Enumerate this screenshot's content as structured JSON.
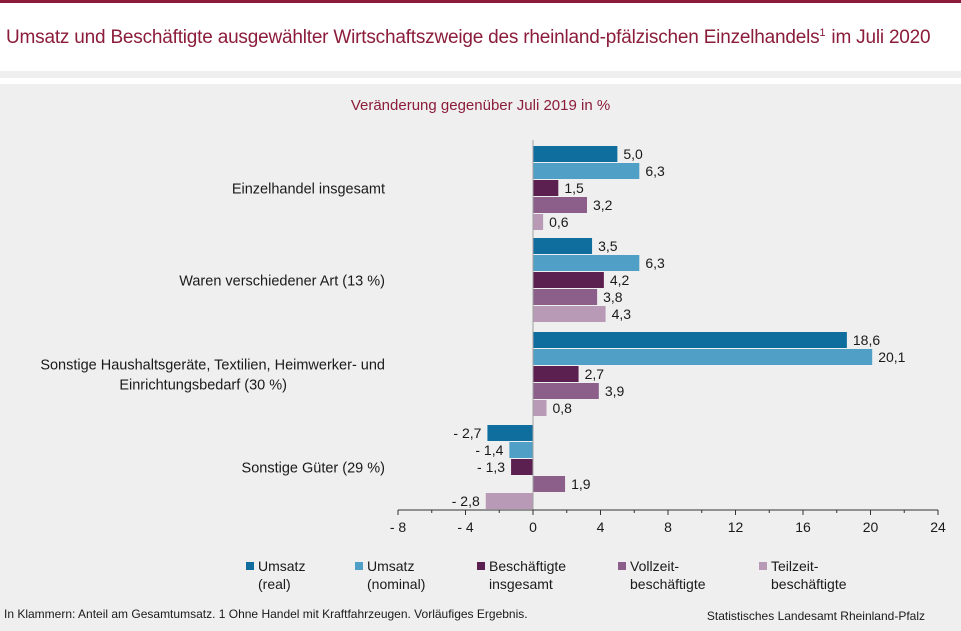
{
  "header": {
    "title": "Umsatz und Beschäftigte ausgewählter Wirtschaftszweige des rheinland-pfälzischen Einzelhandels",
    "title_sup": "1",
    "title_tail": " im Juli 2020"
  },
  "chart_data": {
    "type": "bar",
    "orientation": "horizontal",
    "subtitle": "Veränderung gegenüber Juli 2019 in %",
    "categories": [
      "Einzelhandel insgesamt",
      "Waren verschiedener Art (13 %)",
      "Sonstige Haushaltsgeräte, Textilien, Heimwerker- und\nEinrichtungsbedarf (30 %)",
      "Sonstige Güter (29 %)"
    ],
    "series": [
      {
        "name": "Umsatz\n(real)",
        "color": "#0f6e9e",
        "values": [
          5.0,
          3.5,
          18.6,
          -2.7
        ],
        "labels": [
          "5,0",
          "3,5",
          "18,6",
          "- 2,7"
        ]
      },
      {
        "name": "Umsatz\n(nominal)",
        "color": "#4f9fc6",
        "values": [
          6.3,
          6.3,
          20.1,
          -1.4
        ],
        "labels": [
          "6,3",
          "6,3",
          "20,1",
          "- 1,4"
        ]
      },
      {
        "name": "Beschäftigte\ninsgesamt",
        "color": "#5c2050",
        "values": [
          1.5,
          4.2,
          2.7,
          -1.3
        ],
        "labels": [
          "1,5",
          "4,2",
          "2,7",
          "- 1,3"
        ]
      },
      {
        "name": "Vollzeit-\nbeschäftigte",
        "color": "#8c5f8b",
        "values": [
          3.2,
          3.8,
          3.9,
          1.9
        ],
        "labels": [
          "3,2",
          "3,8",
          "3,9",
          "1,9"
        ]
      },
      {
        "name": "Teilzeit-\nbeschäftigte",
        "color": "#b99ab6",
        "values": [
          0.6,
          4.3,
          0.8,
          -2.8
        ],
        "labels": [
          "0,6",
          "4,3",
          "0,8",
          "- 2,8"
        ]
      }
    ],
    "xlim": [
      -8,
      24
    ],
    "xticks": [
      -8,
      -4,
      0,
      4,
      8,
      12,
      16,
      20,
      24
    ],
    "xtick_labels": [
      "- 8",
      "- 4",
      "0",
      "4",
      "8",
      "12",
      "16",
      "20",
      "24"
    ],
    "grid": false,
    "legend_position": "bottom"
  },
  "footer": {
    "note": "In Klammern: Anteil am Gesamtumsatz. 1 Ohne Handel mit Kraftfahrzeugen. Vorläufiges Ergebnis.",
    "source": "Statistisches Landesamt Rheinland-Pfalz"
  }
}
